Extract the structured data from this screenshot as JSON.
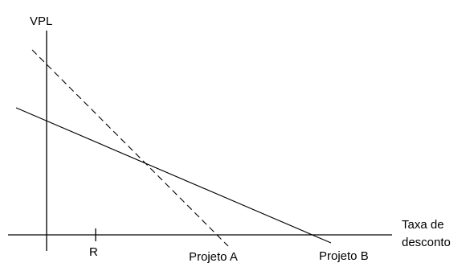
{
  "diagram": {
    "y_axis_label": "VPL",
    "x_axis_label_line1": "Taxa de",
    "x_axis_label_line2": "desconto",
    "tick_label": "R",
    "project_a_label": "Projeto A",
    "project_b_label": "Projeto B",
    "project_a_style": "dashed",
    "project_b_style": "solid",
    "line_color": "#000000",
    "background_color": "#ffffff"
  }
}
